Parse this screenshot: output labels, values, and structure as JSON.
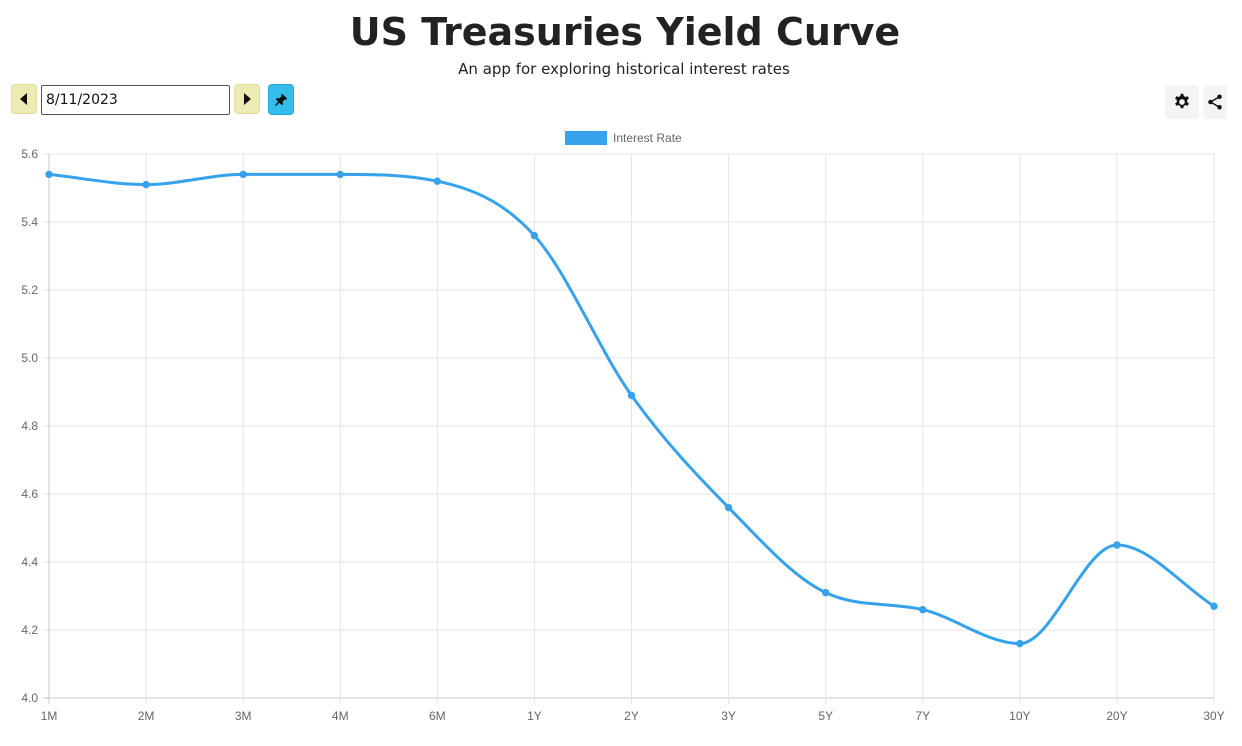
{
  "header": {
    "title": "US Treasuries Yield Curve",
    "subtitle": "An app for exploring historical interest rates"
  },
  "toolbar": {
    "date_value": "8/11/2023",
    "prev_icon": "caret-left-icon",
    "next_icon": "caret-right-icon",
    "pin_icon": "pin-icon",
    "settings_icon": "gear-icon",
    "share_icon": "share-icon"
  },
  "colors": {
    "accent": "#36a2eb",
    "nav_button": "#eeeab4",
    "pin_button": "#33bde8"
  },
  "chart_data": {
    "type": "line",
    "x": [
      "1M",
      "2M",
      "3M",
      "4M",
      "6M",
      "1Y",
      "2Y",
      "3Y",
      "5Y",
      "7Y",
      "10Y",
      "20Y",
      "30Y"
    ],
    "series": [
      {
        "name": "Interest Rate",
        "values": [
          5.54,
          5.51,
          5.54,
          5.54,
          5.52,
          5.36,
          4.89,
          4.56,
          4.31,
          4.26,
          4.16,
          4.45,
          4.27
        ],
        "color": "#36a2eb"
      }
    ],
    "ylim": [
      4.0,
      5.6
    ],
    "yticks": [
      "4.0",
      "4.2",
      "4.4",
      "4.6",
      "4.8",
      "5.0",
      "5.2",
      "5.4",
      "5.6"
    ],
    "grid": true,
    "legend": "top-center",
    "smooth": true
  }
}
